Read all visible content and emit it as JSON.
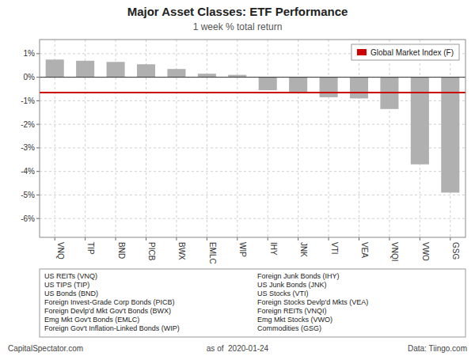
{
  "chart_data": {
    "type": "bar",
    "title": "Major Asset Classes: ETF Performance",
    "subtitle": "1 week % total return",
    "categories": [
      "VNQ",
      "TIP",
      "BND",
      "PICB",
      "BWX",
      "EMLC",
      "WIP",
      "IHY",
      "JNK",
      "VTI",
      "VEA",
      "VNQI",
      "VWO",
      "GSG"
    ],
    "values": [
      0.75,
      0.7,
      0.65,
      0.55,
      0.35,
      0.15,
      0.1,
      -0.55,
      -0.65,
      -0.85,
      -0.9,
      -1.35,
      -3.7,
      -4.9
    ],
    "color": "#b0b0b0",
    "ylim": [
      -6.8,
      1.6
    ],
    "yticks": [
      {
        "value": -6,
        "label": "-6%"
      },
      {
        "value": -5,
        "label": "-5%"
      },
      {
        "value": -4,
        "label": "-4%"
      },
      {
        "value": -3,
        "label": "-3%"
      },
      {
        "value": -2,
        "label": "-2%"
      },
      {
        "value": -1,
        "label": "-1%"
      },
      {
        "value": 0,
        "label": "0%"
      },
      {
        "value": 1,
        "label": "1%"
      }
    ],
    "grid": true,
    "legend": "upper right",
    "reference_lines": [
      {
        "name": "Global Market Index (F)",
        "value": -0.65,
        "color": "#cc0000"
      }
    ],
    "notes": [
      [
        "US REITs (VNQ)",
        "Foreign Junk Bonds (IHY)"
      ],
      [
        "US TIPS (TIP)",
        "US Junk Bonds (JNK)"
      ],
      [
        "US Bonds (BND)",
        "US Stocks (VTI)"
      ],
      [
        "Foreign Invest-Grade Corp Bonds (PICB)",
        "Foreign Stocks Devlp'd Mkts (VEA)"
      ],
      [
        "Foreign Devlp'd Mkt Gov't Bonds (BWX)",
        "Foreign REITs (VNQI)"
      ],
      [
        "Emg Mkt Gov't Bonds (EMLC)",
        "Emg Mkt Stocks (VWO)"
      ],
      [
        "Foreign Gov't Inflation-Linked Bonds (WIP)",
        "Commodities (GSG)"
      ]
    ],
    "footer": [
      "CapitalSpectator.com",
      "as of  2020-01-24",
      "Data: Tiingo.com"
    ]
  }
}
